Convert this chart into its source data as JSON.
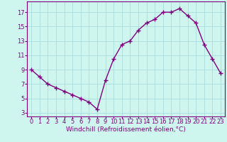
{
  "x": [
    0,
    1,
    2,
    3,
    4,
    5,
    6,
    7,
    8,
    9,
    10,
    11,
    12,
    13,
    14,
    15,
    16,
    17,
    18,
    19,
    20,
    21,
    22,
    23
  ],
  "y": [
    9.0,
    8.0,
    7.0,
    6.5,
    6.0,
    5.5,
    5.0,
    4.5,
    3.5,
    7.5,
    10.5,
    12.5,
    13.0,
    14.5,
    15.5,
    16.0,
    17.0,
    17.0,
    17.5,
    16.5,
    15.5,
    12.5,
    10.5,
    8.5
  ],
  "line_color": "#800080",
  "marker": "+",
  "marker_size": 4,
  "line_width": 1.0,
  "background_color": "#cef5ee",
  "grid_color": "#aadddd",
  "xlabel": "Windchill (Refroidissement éolien,°C)",
  "xlabel_fontsize": 6.5,
  "ylabel_ticks": [
    3,
    5,
    7,
    9,
    11,
    13,
    15,
    17
  ],
  "xtick_labels": [
    "0",
    "1",
    "2",
    "3",
    "4",
    "5",
    "6",
    "7",
    "8",
    "9",
    "10",
    "11",
    "12",
    "13",
    "14",
    "15",
    "16",
    "17",
    "18",
    "19",
    "20",
    "21",
    "22",
    "23"
  ],
  "ylim": [
    2.5,
    18.5
  ],
  "xlim": [
    -0.5,
    23.5
  ],
  "tick_fontsize": 6.0,
  "tick_color": "#800080",
  "spine_color": "#800080"
}
